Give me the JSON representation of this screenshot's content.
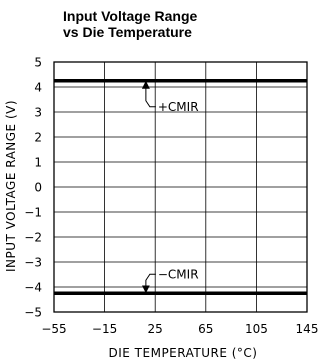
{
  "chart_data": {
    "type": "line",
    "title_lines": [
      "Input Voltage Range",
      "vs Die Temperature"
    ],
    "xlabel": "DIE TEMPERATURE (°C)",
    "ylabel": "INPUT VOLTAGE RANGE (V)",
    "xlim": [
      -55,
      145
    ],
    "ylim": [
      -5,
      5
    ],
    "x_ticks": [
      -55,
      -15,
      25,
      65,
      105,
      145
    ],
    "y_ticks": [
      5,
      4,
      3,
      2,
      1,
      0,
      -1,
      -2,
      -3,
      -4,
      -5
    ],
    "x_tick_labels": [
      "−55",
      "−15",
      "25",
      "65",
      "105",
      "145"
    ],
    "y_tick_labels": [
      "5",
      "4",
      "3",
      "2",
      "1",
      "0",
      "−1",
      "−2",
      "−3",
      "−4",
      "−5"
    ],
    "grid": true,
    "series": [
      {
        "name": "+CMIR",
        "x": [
          -55,
          145
        ],
        "y": [
          4.25,
          4.25
        ]
      },
      {
        "name": "−CMIR",
        "x": [
          -55,
          145
        ],
        "y": [
          -4.25,
          -4.25
        ]
      }
    ],
    "annotations": [
      {
        "text": "+CMIR",
        "series": 0
      },
      {
        "text": "−CMIR",
        "series": 1
      }
    ],
    "colors": {
      "line": "#000000",
      "grid": "#000000"
    }
  }
}
